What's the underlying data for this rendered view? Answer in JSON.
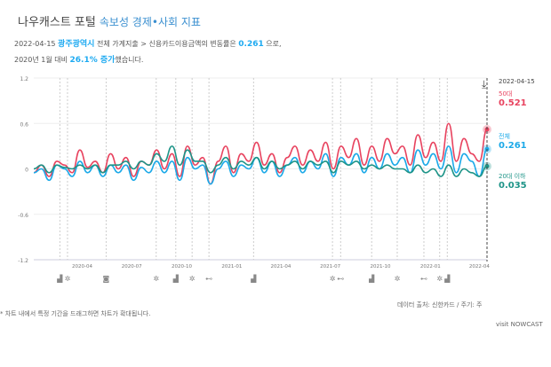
{
  "header": {
    "title": "나우캐스트 포털",
    "subtitle": "속보성 경제•사회 지표"
  },
  "summary": {
    "date": "2022-04-15",
    "region": "광주광역시",
    "path": "전체 가계지출 > 신용카드이용금액의 변동률은",
    "value": "0.261",
    "suffix": "으로,",
    "base": "2020년 1월 대비",
    "change": "26.1% 증가",
    "tail": "했습니다."
  },
  "legend": {
    "date": "2022-04-15",
    "items": [
      {
        "name": "50대",
        "value": "0.521",
        "color": "#e8435f"
      },
      {
        "name": "전체",
        "value": "0.261",
        "color": "#1ba9e8"
      },
      {
        "name": "20대 이하",
        "value": "0.035",
        "color": "#1e9488"
      }
    ]
  },
  "footer": {
    "source": "데이터 출처: 신한카드 / 주기: 주",
    "note": "* 차트 내에서 특정 기간을 드래그하면 차트가 확대됩니다.",
    "visit": "visit NOWCAST"
  },
  "chart_data": {
    "type": "line",
    "start": "2020-01-03",
    "interval_days": 14,
    "ylim": [
      -1.2,
      1.2
    ],
    "yticks": [
      "1.2",
      "0.6",
      "0",
      "-0.6",
      "-1.2"
    ],
    "xticks": [
      "2020-04",
      "2020-07",
      "2020-10",
      "2021-01",
      "2021-04",
      "2021-07",
      "2021-10",
      "2022-01",
      "2022-04"
    ],
    "series": [
      {
        "name": "50대",
        "color": "#e8435f",
        "values": [
          -0.05,
          0.05,
          -0.1,
          0.1,
          0.05,
          -0.05,
          0.25,
          0.02,
          0.1,
          -0.05,
          0.2,
          0.0,
          0.15,
          -0.1,
          0.1,
          0.05,
          0.25,
          0.0,
          0.2,
          -0.1,
          0.3,
          0.05,
          0.15,
          -0.2,
          0.1,
          0.3,
          -0.05,
          0.2,
          0.1,
          0.35,
          0.05,
          0.2,
          -0.05,
          0.15,
          0.3,
          0.05,
          0.25,
          0.1,
          0.35,
          0.0,
          0.3,
          0.15,
          0.4,
          0.05,
          0.3,
          0.1,
          0.4,
          0.2,
          0.3,
          0.05,
          0.45,
          0.15,
          0.35,
          0.1,
          0.6,
          0.1,
          0.4,
          0.2,
          0.1,
          0.521
        ]
      },
      {
        "name": "전체",
        "color": "#1ba9e8",
        "values": [
          -0.05,
          0.0,
          -0.15,
          0.05,
          0.0,
          -0.1,
          0.1,
          -0.05,
          0.05,
          -0.1,
          0.05,
          -0.05,
          0.05,
          -0.15,
          0.02,
          -0.05,
          0.1,
          -0.05,
          0.1,
          -0.15,
          0.15,
          0.0,
          0.05,
          -0.2,
          0.0,
          0.1,
          -0.1,
          0.05,
          0.0,
          0.15,
          -0.05,
          0.1,
          -0.1,
          0.05,
          0.15,
          -0.05,
          0.1,
          0.0,
          0.2,
          -0.1,
          0.15,
          0.05,
          0.2,
          -0.05,
          0.15,
          0.0,
          0.2,
          0.05,
          0.15,
          -0.05,
          0.25,
          0.05,
          0.2,
          0.0,
          0.3,
          -0.05,
          0.2,
          0.1,
          -0.1,
          0.261
        ]
      },
      {
        "name": "20대 이하",
        "color": "#1e9488",
        "values": [
          0.0,
          0.05,
          -0.05,
          0.05,
          0.02,
          0.0,
          0.05,
          0.0,
          0.05,
          -0.05,
          0.05,
          0.05,
          0.1,
          0.0,
          0.1,
          0.05,
          0.2,
          0.1,
          0.3,
          0.05,
          0.25,
          0.1,
          0.1,
          -0.05,
          0.05,
          0.15,
          0.0,
          0.1,
          0.05,
          0.15,
          0.0,
          0.1,
          0.0,
          0.05,
          0.1,
          0.0,
          0.1,
          0.05,
          0.1,
          -0.05,
          0.1,
          0.05,
          0.1,
          0.0,
          0.05,
          0.0,
          0.05,
          0.0,
          0.0,
          -0.05,
          0.05,
          -0.05,
          0.0,
          -0.1,
          0.05,
          -0.1,
          0.0,
          -0.05,
          -0.1,
          0.035
        ]
      }
    ]
  },
  "events": [
    {
      "date": "2020-02-20",
      "icon": "building"
    },
    {
      "date": "2020-03-05",
      "icon": "virus"
    },
    {
      "date": "2020-05-15",
      "icon": "camera"
    },
    {
      "date": "2020-08-15",
      "icon": "virus"
    },
    {
      "date": "2020-09-20",
      "icon": "building"
    },
    {
      "date": "2020-10-20",
      "icon": "virus"
    },
    {
      "date": "2020-11-20",
      "icon": "dumbbell"
    },
    {
      "date": "2021-02-10",
      "icon": "building"
    },
    {
      "date": "2021-07-05",
      "icon": "virus"
    },
    {
      "date": "2021-07-20",
      "icon": "dumbbell"
    },
    {
      "date": "2021-09-15",
      "icon": "building"
    },
    {
      "date": "2021-11-01",
      "icon": "virus"
    },
    {
      "date": "2021-12-20",
      "icon": "dumbbell"
    },
    {
      "date": "2022-01-18",
      "icon": "virus"
    },
    {
      "date": "2022-02-01",
      "icon": "building"
    }
  ]
}
